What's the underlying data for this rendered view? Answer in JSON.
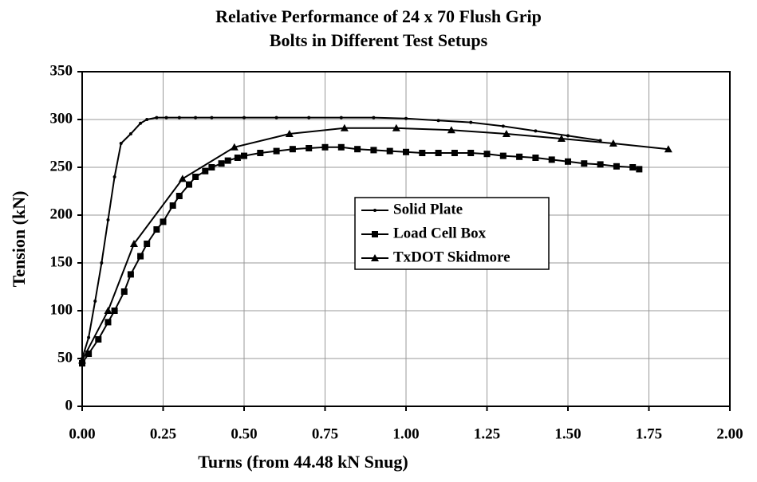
{
  "chart_data": {
    "type": "line",
    "title": "Relative Performance of 24 x 70 Flush Grip Bolts in Different Test Setups",
    "x_label": "Turns (from 44.48 kN Snug)",
    "y_label": "Tension (kN)",
    "xlim": [
      0,
      2
    ],
    "ylim": [
      0,
      350
    ],
    "xticks": [
      {
        "value": 0,
        "label": "0.00"
      },
      {
        "value": 0.25,
        "label": "0.25"
      },
      {
        "value": 0.5,
        "label": "0.50"
      },
      {
        "value": 0.75,
        "label": "0.75"
      },
      {
        "value": 1,
        "label": "1.00"
      },
      {
        "value": 1.25,
        "label": "1.25"
      },
      {
        "value": 1.5,
        "label": "1.50"
      },
      {
        "value": 1.75,
        "label": "1.75"
      },
      {
        "value": 2,
        "label": "2.00"
      }
    ],
    "yticks": [
      0,
      50,
      100,
      150,
      200,
      250,
      300,
      350
    ],
    "grid": true,
    "series": [
      {
        "name": "Solid Plate",
        "color": "#000000",
        "marker": "dot",
        "x": [
          0,
          0.02,
          0.04,
          0.06,
          0.08,
          0.1,
          0.12,
          0.15,
          0.18,
          0.2,
          0.23,
          0.26,
          0.3,
          0.35,
          0.4,
          0.5,
          0.6,
          0.7,
          0.8,
          0.9,
          1.0,
          1.1,
          1.2,
          1.3,
          1.4,
          1.5,
          1.6
        ],
        "values": [
          50,
          72,
          110,
          150,
          195,
          240,
          275,
          285,
          296,
          300,
          302,
          302,
          302,
          302,
          302,
          302,
          302,
          302,
          302,
          302,
          301,
          299,
          297,
          293,
          288,
          283,
          278
        ]
      },
      {
        "name": "Load Cell Box",
        "color": "#000000",
        "marker": "square",
        "x": [
          0,
          0.02,
          0.05,
          0.08,
          0.1,
          0.13,
          0.15,
          0.18,
          0.2,
          0.23,
          0.25,
          0.28,
          0.3,
          0.33,
          0.35,
          0.38,
          0.4,
          0.43,
          0.45,
          0.48,
          0.5,
          0.55,
          0.6,
          0.65,
          0.7,
          0.75,
          0.8,
          0.85,
          0.9,
          0.95,
          1.0,
          1.05,
          1.1,
          1.15,
          1.2,
          1.25,
          1.3,
          1.35,
          1.4,
          1.45,
          1.5,
          1.55,
          1.6,
          1.65,
          1.7,
          1.72
        ],
        "values": [
          45,
          55,
          70,
          88,
          100,
          120,
          138,
          157,
          170,
          185,
          193,
          210,
          220,
          232,
          240,
          246,
          250,
          254,
          257,
          260,
          262,
          265,
          267,
          269,
          270,
          271,
          271,
          269,
          268,
          267,
          266,
          265,
          265,
          265,
          265,
          264,
          262,
          261,
          260,
          258,
          256,
          254,
          253,
          251,
          250,
          248
        ]
      },
      {
        "name": "TxDOT Skidmore",
        "color": "#000000",
        "marker": "triangle",
        "x": [
          0,
          0.08,
          0.16,
          0.31,
          0.47,
          0.64,
          0.81,
          0.97,
          1.14,
          1.31,
          1.48,
          1.64,
          1.81
        ],
        "values": [
          48,
          100,
          170,
          238,
          271,
          285,
          291,
          291,
          289,
          285,
          280,
          275,
          269
        ]
      }
    ]
  }
}
